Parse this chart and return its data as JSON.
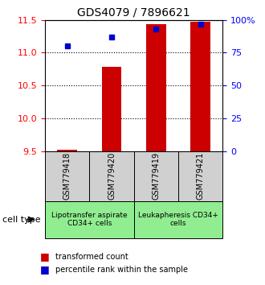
{
  "title": "GDS4079 / 7896621",
  "samples": [
    "GSM779418",
    "GSM779420",
    "GSM779419",
    "GSM779421"
  ],
  "transformed_counts": [
    9.52,
    10.78,
    11.43,
    11.47
  ],
  "percentile_ranks": [
    80.0,
    87.0,
    93.0,
    97.0
  ],
  "ylim_left": [
    9.5,
    11.5
  ],
  "ylim_right": [
    0,
    100
  ],
  "yticks_left": [
    9.5,
    10.0,
    10.5,
    11.0,
    11.5
  ],
  "yticks_right": [
    0,
    25,
    50,
    75,
    100
  ],
  "ytick_labels_right": [
    "0",
    "25",
    "50",
    "75",
    "100%"
  ],
  "bar_color": "#cc0000",
  "dot_color": "#0000cc",
  "bar_width": 0.45,
  "bar_baseline": 9.5,
  "group_info": [
    {
      "start": 0,
      "end": 2,
      "color": "#90ee90",
      "label": "Lipotransfer aspirate\nCD34+ cells"
    },
    {
      "start": 2,
      "end": 4,
      "color": "#90ee90",
      "label": "Leukapheresis CD34+\ncells"
    }
  ],
  "sample_box_color": "#d0d0d0",
  "cell_type_label": "cell type",
  "legend_items": [
    {
      "color": "#cc0000",
      "label": "transformed count"
    },
    {
      "color": "#0000cc",
      "label": "percentile rank within the sample"
    }
  ],
  "dotted_lines": [
    10.0,
    10.5,
    11.0
  ],
  "title_fontsize": 10
}
